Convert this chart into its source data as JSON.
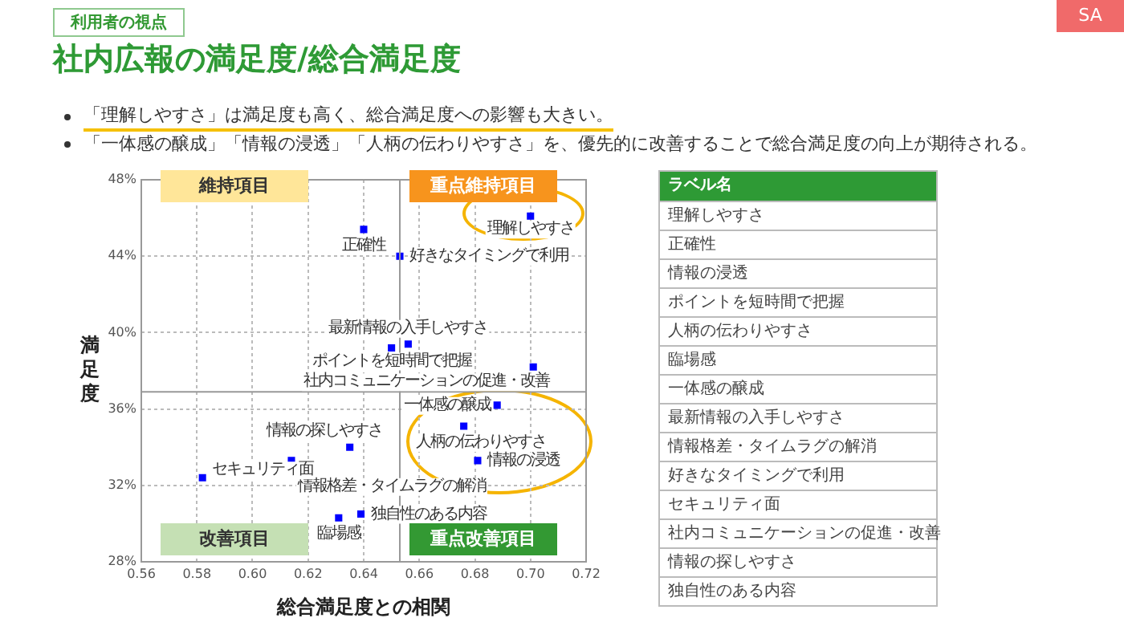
{
  "chart_data": [
    {
      "type": "scatter",
      "title": "社内広報の満足度/総合満足度",
      "xlabel": "総合満足度との相関",
      "ylabel": "満足度",
      "color": "#0000ff",
      "marker": "square",
      "grid": true,
      "x": [
        0.7,
        0.64,
        0.653,
        0.656,
        0.65,
        0.701,
        0.688,
        0.676,
        0.681,
        0.635,
        0.614,
        0.582,
        0.639,
        0.631
      ],
      "values": [
        46.1,
        45.4,
        44.0,
        39.4,
        39.2,
        38.2,
        36.2,
        35.1,
        33.3,
        34.0,
        33.3,
        32.4,
        30.5,
        30.3
      ],
      "xlim": [
        0.56,
        0.72
      ],
      "xticks": [
        0.56,
        0.58,
        {
          "value": 0.6,
          "label": "0.60"
        },
        0.62,
        0.64,
        0.66,
        0.68,
        {
          "value": 0.7,
          "label": "0.70"
        },
        0.72
      ],
      "ylim": [
        28,
        48
      ],
      "yticks": [
        {
          "value": 28,
          "label": "28%"
        },
        {
          "value": 32,
          "label": "32%"
        },
        {
          "value": 36,
          "label": "36%"
        },
        {
          "value": 40,
          "label": "40%"
        },
        {
          "value": 44,
          "label": "44%"
        },
        {
          "value": 48,
          "label": "48%"
        }
      ],
      "ref_lines": [
        {
          "axis": "x",
          "value": 0.653
        },
        {
          "axis": "y",
          "value": 36.9
        }
      ],
      "annotations": [
        "利用者の視点",
        "SA",
        "「理解しやすさ」は満足度も高く、総合満足度への影響も大きい。",
        "「一体感の醸成」「情報の浸透」「人柄の伝わりやすさ」を、優先的に改善することで総合満足度の向上が期待される。",
        "維持項目",
        "重点維持項目",
        "改善項目",
        "重点改善項目",
        {
          "text": "理解しやすさ",
          "x": 0.7,
          "y": 46.1
        },
        {
          "text": "正確性",
          "x": 0.64,
          "y": 45.4
        },
        {
          "text": "好きなタイミングで利用",
          "x": 0.653,
          "y": 44.0
        },
        {
          "text": "最新情報の入手しやすさ",
          "x": 0.656,
          "y": 39.4
        },
        {
          "text": "ポイントを短時間で把握",
          "x": 0.65,
          "y": 39.2
        },
        {
          "text": "社内コミュニケーションの促進・改善",
          "x": 0.701,
          "y": 38.2
        },
        {
          "text": "一体感の醸成",
          "x": 0.688,
          "y": 36.2
        },
        {
          "text": "人柄の伝わりやすさ",
          "x": 0.676,
          "y": 35.1
        },
        {
          "text": "情報の浸透",
          "x": 0.681,
          "y": 33.3
        },
        {
          "text": "情報の探しやすさ",
          "x": 0.635,
          "y": 34.0
        },
        {
          "text": "情報格差・タイムラグの解消",
          "x": 0.614,
          "y": 33.3
        },
        {
          "text": "セキュリティ面",
          "x": 0.582,
          "y": 32.4
        },
        {
          "text": "独自性のある内容",
          "x": 0.639,
          "y": 30.5
        },
        {
          "text": "臨場感",
          "x": 0.631,
          "y": 30.3
        }
      ]
    },
    {
      "type": "other",
      "title": "ラベル名",
      "annotations": [
        "理解しやすさ",
        "正確性",
        "情報の浸透",
        "ポイントを短時間で把握",
        "人柄の伝わりやすさ",
        "臨場感",
        "一体感の醸成",
        "最新情報の入手しやすさ",
        "情報格差・タイムラグの解消",
        "好きなタイミングで利用",
        "セキュリティ面",
        "社内コミュニケーションの促進・改善",
        "情報の探しやすさ",
        "独自性のある内容"
      ]
    }
  ]
}
